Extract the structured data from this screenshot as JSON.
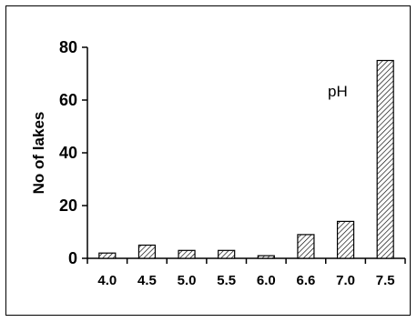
{
  "chart_data": {
    "type": "bar",
    "categories": [
      "4.0",
      "4.5",
      "5.0",
      "5.5",
      "6.0",
      "6.6",
      "7.0",
      "7.5"
    ],
    "values": [
      2,
      5,
      3,
      3,
      1,
      9,
      14,
      75
    ],
    "xlabel": "",
    "ylabel": "No of lakes",
    "ylim": [
      0,
      80
    ],
    "yticks": [
      "0",
      "20",
      "40",
      "60",
      "80"
    ],
    "annotation": "pH",
    "bar_fill": "hatched",
    "grid": false,
    "legend": "none"
  }
}
